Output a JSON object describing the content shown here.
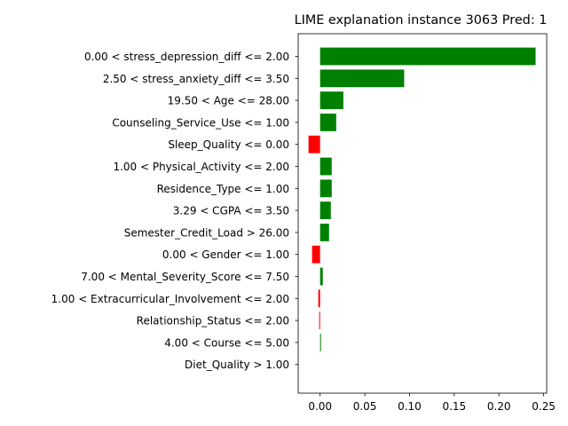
{
  "chart_data": {
    "type": "bar",
    "orientation": "horizontal",
    "title": "LIME explanation instance 3063 Pred: 1",
    "xlabel": "",
    "ylabel": "",
    "xlim": [
      -0.0245,
      0.2534
    ],
    "x_ticks": [
      0.0,
      0.05,
      0.1,
      0.15,
      0.2,
      0.25
    ],
    "x_tick_labels": [
      "0.00",
      "0.05",
      "0.10",
      "0.15",
      "0.20",
      "0.25"
    ],
    "grid": false,
    "legend": false,
    "positive_color": "#008000",
    "negative_color": "#ff0000",
    "categories": [
      "0.00 < stress_depression_diff <= 2.00",
      "2.50 < stress_anxiety_diff <= 3.50",
      "19.50 < Age <= 28.00",
      "Counseling_Service_Use <= 1.00",
      "Sleep_Quality <= 0.00",
      "1.00 < Physical_Activity <= 2.00",
      "Residence_Type <= 1.00",
      "3.29 < CGPA <= 3.50",
      "Semester_Credit_Load > 26.00",
      "0.00 < Gender <= 1.00",
      "7.00 < Mental_Severity_Score <= 7.50",
      "1.00 < Extracurricular_Involvement <= 2.00",
      "Relationship_Status <= 2.00",
      "4.00 < Course <= 5.00",
      "Diet_Quality > 1.00"
    ],
    "values": [
      0.241,
      0.094,
      0.026,
      0.018,
      -0.013,
      0.013,
      0.013,
      0.012,
      0.01,
      -0.009,
      0.003,
      -0.002,
      -0.001,
      0.001,
      0.0
    ]
  }
}
